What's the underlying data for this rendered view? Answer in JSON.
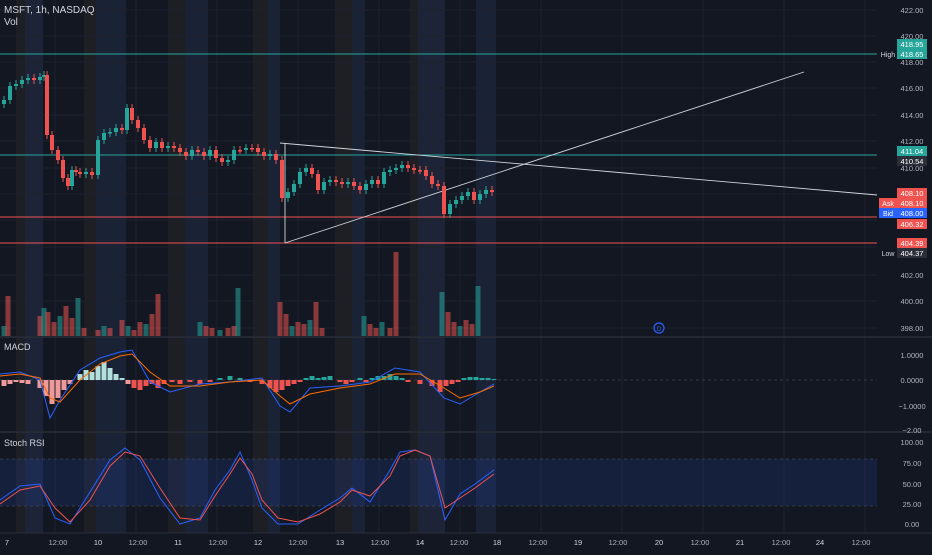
{
  "header": {
    "symbol": "MSFT, 1h, NASDAQ",
    "volume_label": "Vol"
  },
  "panels": {
    "macd_label": "MACD",
    "stoch_label": "Stoch RSI"
  },
  "price_axis": [
    "422.00",
    "420.00",
    "418.00",
    "416.00",
    "414.00",
    "412.00",
    "410.00",
    "402.00",
    "400.00",
    "398.00"
  ],
  "macd_axis": [
    "1.0000",
    "0.0000",
    "−1.0000",
    "−2.00"
  ],
  "stoch_axis": [
    "100.00",
    "75.00",
    "50.00",
    "25.00",
    "0.00"
  ],
  "time_axis": [
    "7",
    "12:00",
    "10",
    "12:00",
    "11",
    "12:00",
    "12",
    "12:00",
    "13",
    "12:00",
    "14",
    "12:00",
    "18",
    "12:00",
    "19",
    "12:00",
    "20",
    "12:00",
    "21",
    "12:00",
    "24",
    "12:00"
  ],
  "price_tags": {
    "high_label": "High",
    "high_value": "418.65",
    "top_green": "418.95",
    "green_a": "411.04",
    "green_b": "410.54",
    "last_red": "408.10",
    "ask_label": "Ask",
    "ask_value": "408.10",
    "bid_label": "Bid",
    "bid_value": "408.00",
    "red_b": "406.32",
    "red_c": "404.39",
    "low_label": "Low",
    "low_value": "404.37"
  },
  "colors": {
    "bg": "#131722",
    "up": "#26a69a",
    "down": "#ef5350",
    "macd_line": "#2962ff",
    "signal_line": "#ff6d00",
    "grid": "#1e222d"
  },
  "icons": {
    "dividend_icon": "D"
  }
}
